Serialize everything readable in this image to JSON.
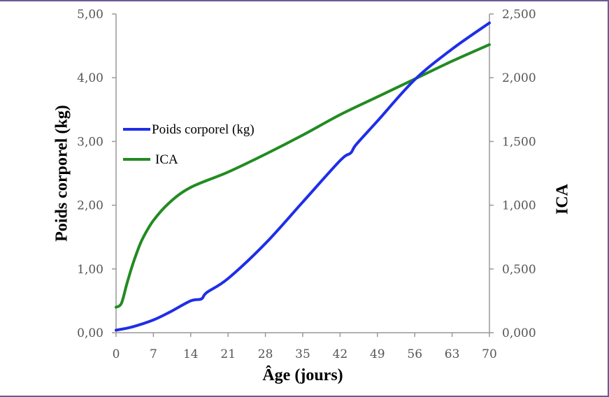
{
  "chart_data": {
    "type": "line",
    "xlabel": "Âge (jours)",
    "ylabel": "Poids corporel (kg)",
    "y2label": "ICA",
    "xlim": [
      0,
      70
    ],
    "ylim": [
      0,
      5
    ],
    "y2lim": [
      0,
      2.5
    ],
    "x_ticks": [
      "0",
      "7",
      "14",
      "21",
      "28",
      "35",
      "42",
      "49",
      "56",
      "63",
      "70"
    ],
    "y_ticks": [
      "0,00",
      "1,00",
      "2,00",
      "3,00",
      "4,00",
      "5,00"
    ],
    "y2_ticks": [
      "0,000",
      "0,500",
      "1,000",
      "1,500",
      "2,000",
      "2,500"
    ],
    "grid": false,
    "legend_position": "left-middle",
    "series": [
      {
        "name": "Poids corporel (kg)",
        "axis": "left",
        "color": "#1f2ee8",
        "x": [
          0,
          3,
          7,
          10,
          14,
          16,
          17,
          21,
          28,
          35,
          42,
          44,
          45,
          49,
          56,
          63,
          70
        ],
        "y": [
          0.04,
          0.09,
          0.2,
          0.32,
          0.5,
          0.53,
          0.63,
          0.85,
          1.4,
          2.05,
          2.7,
          2.82,
          2.95,
          3.32,
          3.97,
          4.45,
          4.86
        ]
      },
      {
        "name": "ICA",
        "axis": "right",
        "color": "#228b22",
        "x": [
          0,
          1,
          2,
          3,
          4,
          5,
          7,
          10,
          14,
          21,
          28,
          35,
          42,
          49,
          56,
          63,
          70
        ],
        "y": [
          0.2,
          0.23,
          0.38,
          0.52,
          0.64,
          0.74,
          0.88,
          1.02,
          1.14,
          1.26,
          1.4,
          1.55,
          1.71,
          1.85,
          1.99,
          2.13,
          2.26
        ]
      }
    ]
  }
}
